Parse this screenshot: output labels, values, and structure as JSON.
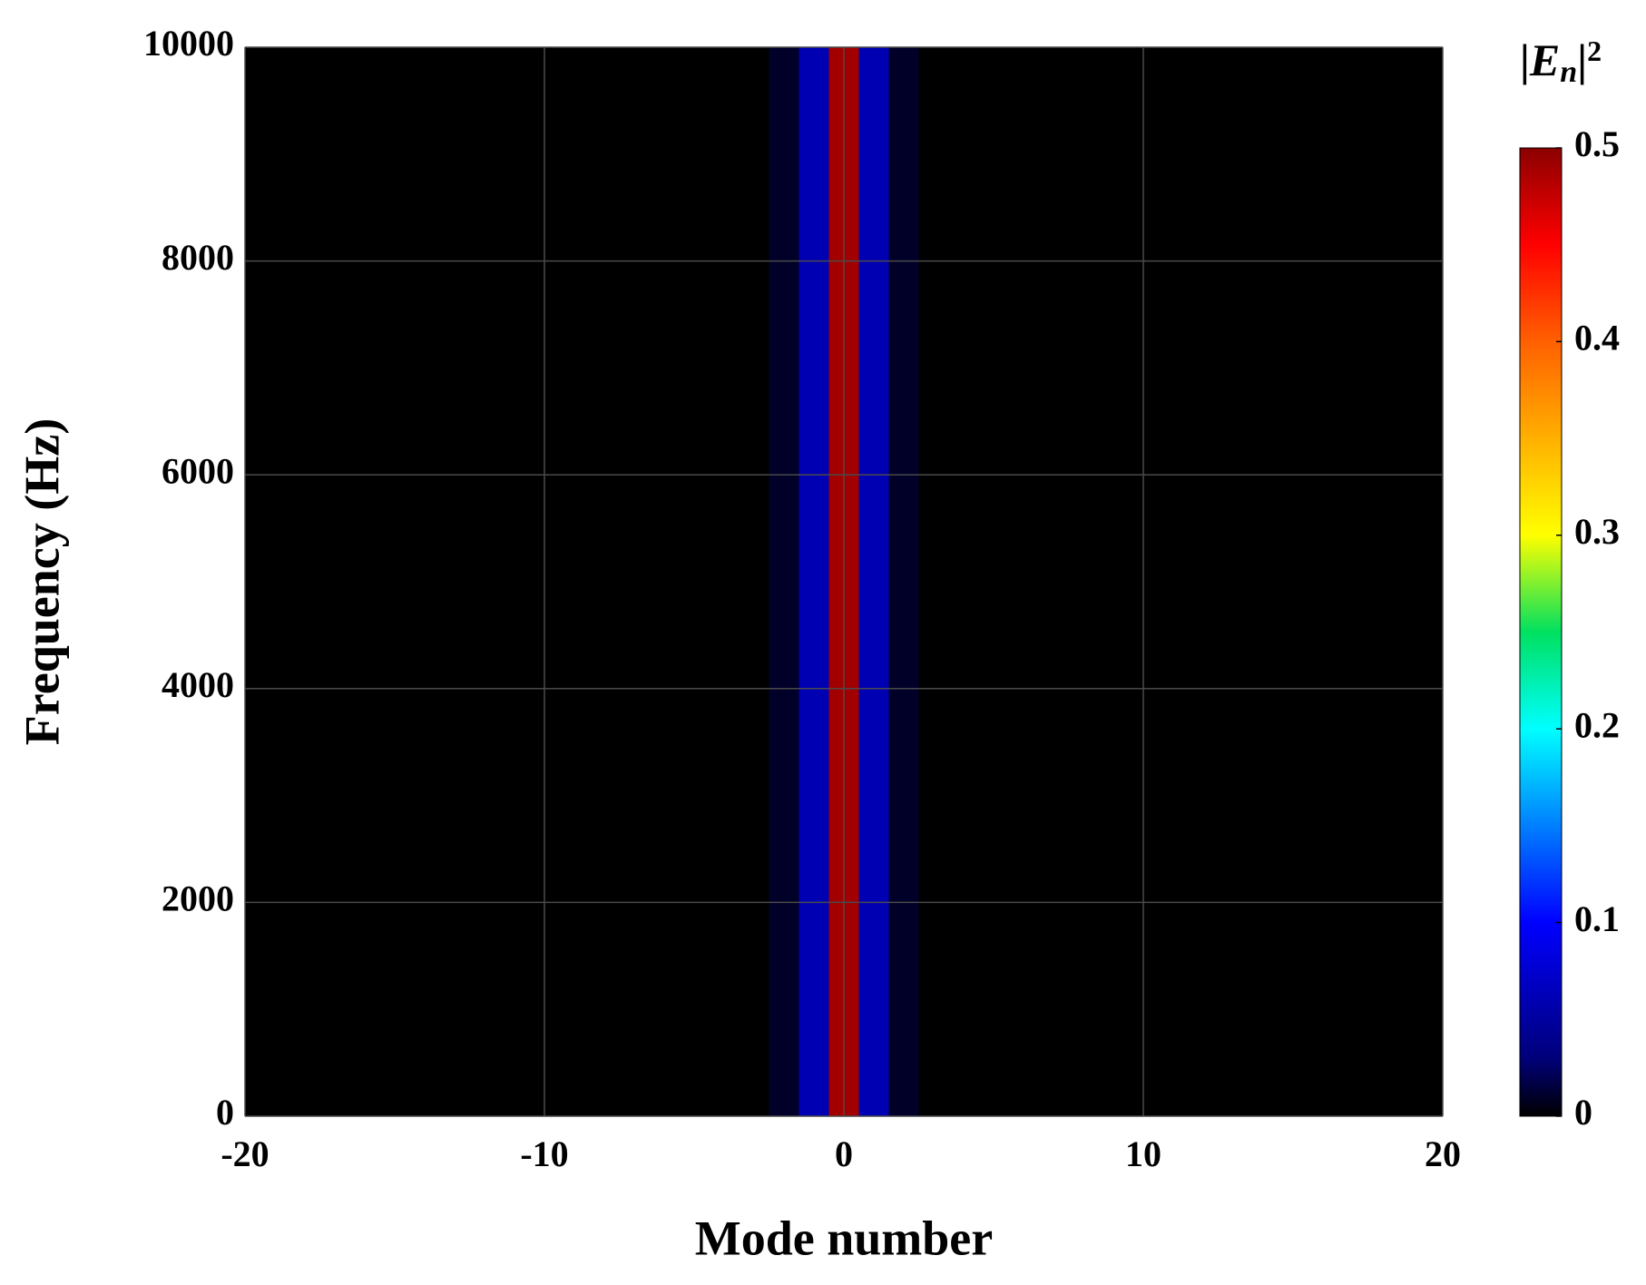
{
  "chart_data": {
    "type": "heatmap",
    "xlabel": "Mode number",
    "ylabel": "Frequency (Hz)",
    "colorbar_label": [
      "|",
      "E",
      "n",
      "|",
      "2"
    ],
    "x": [
      -20,
      -19,
      -18,
      -17,
      -16,
      -15,
      -14,
      -13,
      -12,
      -11,
      -10,
      -9,
      -8,
      -7,
      -6,
      -5,
      -4,
      -3,
      -2,
      -1,
      0,
      1,
      2,
      3,
      4,
      5,
      6,
      7,
      8,
      9,
      10,
      11,
      12,
      13,
      14,
      15,
      16,
      17,
      18,
      19,
      20
    ],
    "values": [
      0,
      0,
      0,
      0,
      0,
      0,
      0,
      0,
      0,
      0,
      0,
      0,
      0,
      0,
      0,
      0,
      0,
      0,
      0.01,
      0.06,
      0.49,
      0.06,
      0.01,
      0,
      0,
      0,
      0,
      0,
      0,
      0,
      0,
      0,
      0,
      0,
      0,
      0,
      0,
      0,
      0,
      0,
      0
    ],
    "xlim": [
      -20,
      20
    ],
    "xticks": [
      -20,
      -10,
      0,
      10,
      20
    ],
    "ylim": [
      0,
      10000
    ],
    "yticks": [
      0,
      2000,
      4000,
      6000,
      8000,
      10000
    ],
    "clim": [
      0,
      0.5
    ],
    "cticks": [
      0,
      0.1,
      0.2,
      0.3,
      0.4,
      0.5
    ],
    "grid": true,
    "colormap": [
      {
        "value": 0,
        "color": "#000000"
      },
      {
        "value": 0.03,
        "color": "#00007a"
      },
      {
        "value": 0.1,
        "color": "#0000ff"
      },
      {
        "value": 0.2,
        "color": "#00ffff"
      },
      {
        "value": 0.25,
        "color": "#00e060"
      },
      {
        "value": 0.3,
        "color": "#ffff00"
      },
      {
        "value": 0.4,
        "color": "#ff6000"
      },
      {
        "value": 0.45,
        "color": "#ff0000"
      },
      {
        "value": 0.5,
        "color": "#8b0000"
      }
    ]
  }
}
